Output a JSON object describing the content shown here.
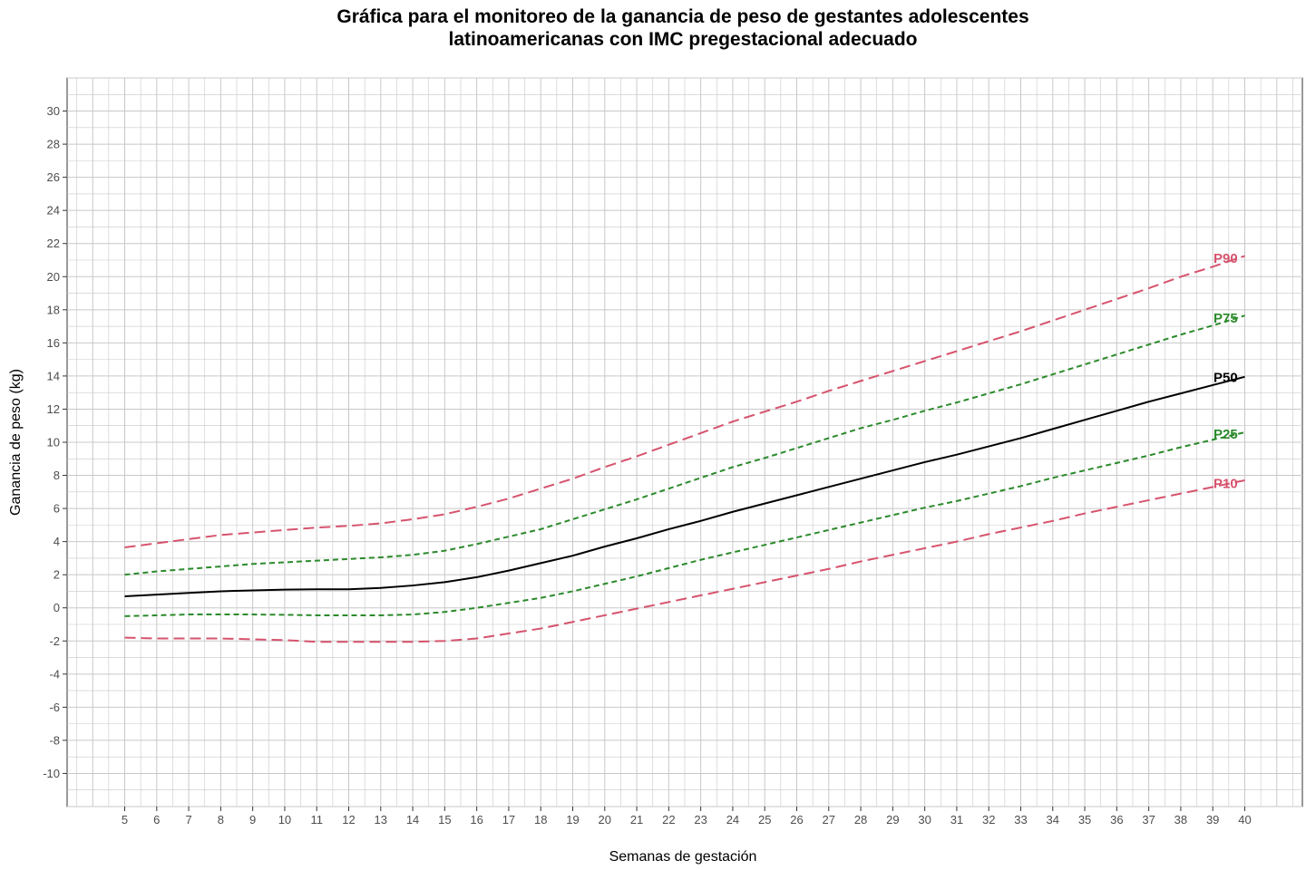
{
  "chart_data": {
    "type": "line",
    "title_lines": [
      "Gráfica para el monitoreo de la ganancia de peso de gestantes adolescentes",
      "latinoamericanas con IMC pregestacional adecuado"
    ],
    "xlabel": "Semanas de gestación",
    "ylabel": "Ganancia de peso (kg)",
    "xlim": [
      3.2,
      41.8
    ],
    "ylim": [
      -12,
      32
    ],
    "x_ticks": [
      5,
      6,
      7,
      8,
      9,
      10,
      11,
      12,
      13,
      14,
      15,
      16,
      17,
      18,
      19,
      20,
      21,
      22,
      23,
      24,
      25,
      26,
      27,
      28,
      29,
      30,
      31,
      32,
      33,
      34,
      35,
      36,
      37,
      38,
      39,
      40
    ],
    "y_ticks": [
      -10,
      -8,
      -6,
      -4,
      -2,
      0,
      2,
      4,
      6,
      8,
      10,
      12,
      14,
      16,
      18,
      20,
      22,
      24,
      26,
      28,
      30
    ],
    "grid": true,
    "minor_grid": true,
    "colors": {
      "p90_p10": "#d6536d",
      "p75_p25": "#2b8a2b",
      "p50": "#000000",
      "grid": "#c8c8c8",
      "tick_text": "#4d4d4d"
    },
    "x": [
      5,
      6,
      7,
      8,
      9,
      10,
      11,
      12,
      13,
      14,
      15,
      16,
      17,
      18,
      19,
      20,
      21,
      22,
      23,
      24,
      25,
      26,
      27,
      28,
      29,
      30,
      31,
      32,
      33,
      34,
      35,
      36,
      37,
      38,
      39,
      40
    ],
    "series": [
      {
        "name": "P90",
        "color": "#d6536d",
        "dash": "long",
        "values": [
          3.65,
          3.9,
          4.15,
          4.4,
          4.55,
          4.7,
          4.85,
          4.95,
          5.1,
          5.35,
          5.65,
          6.1,
          6.6,
          7.2,
          7.8,
          8.5,
          9.15,
          9.85,
          10.55,
          11.25,
          11.85,
          12.45,
          13.1,
          13.7,
          14.3,
          14.9,
          15.5,
          16.1,
          16.7,
          17.35,
          18.0,
          18.65,
          19.3,
          20.0,
          20.6,
          21.25
        ]
      },
      {
        "name": "P75",
        "color": "#2b8a2b",
        "dash": "short",
        "values": [
          2.0,
          2.2,
          2.35,
          2.5,
          2.65,
          2.75,
          2.85,
          2.95,
          3.05,
          3.2,
          3.45,
          3.85,
          4.3,
          4.75,
          5.35,
          5.95,
          6.55,
          7.2,
          7.85,
          8.5,
          9.05,
          9.65,
          10.25,
          10.85,
          11.35,
          11.9,
          12.4,
          12.95,
          13.5,
          14.1,
          14.7,
          15.3,
          15.9,
          16.5,
          17.05,
          17.65
        ]
      },
      {
        "name": "P50",
        "color": "#000000",
        "dash": "solid",
        "values": [
          0.7,
          0.8,
          0.9,
          1.0,
          1.05,
          1.1,
          1.12,
          1.12,
          1.2,
          1.35,
          1.55,
          1.85,
          2.25,
          2.7,
          3.15,
          3.7,
          4.2,
          4.75,
          5.25,
          5.8,
          6.3,
          6.8,
          7.3,
          7.8,
          8.3,
          8.8,
          9.25,
          9.75,
          10.25,
          10.8,
          11.35,
          11.9,
          12.45,
          12.95,
          13.45,
          13.95
        ]
      },
      {
        "name": "P25",
        "color": "#2b8a2b",
        "dash": "short",
        "values": [
          -0.5,
          -0.45,
          -0.4,
          -0.4,
          -0.4,
          -0.42,
          -0.45,
          -0.45,
          -0.45,
          -0.4,
          -0.25,
          0.0,
          0.3,
          0.6,
          1.0,
          1.45,
          1.9,
          2.4,
          2.9,
          3.35,
          3.8,
          4.25,
          4.7,
          5.15,
          5.6,
          6.05,
          6.45,
          6.9,
          7.35,
          7.85,
          8.3,
          8.75,
          9.2,
          9.7,
          10.15,
          10.6
        ]
      },
      {
        "name": "P10",
        "color": "#d6536d",
        "dash": "long",
        "values": [
          -1.8,
          -1.85,
          -1.85,
          -1.85,
          -1.9,
          -1.95,
          -2.05,
          -2.05,
          -2.05,
          -2.05,
          -2.0,
          -1.85,
          -1.55,
          -1.25,
          -0.85,
          -0.45,
          -0.05,
          0.35,
          0.75,
          1.15,
          1.55,
          1.95,
          2.35,
          2.8,
          3.2,
          3.6,
          4.0,
          4.45,
          4.85,
          5.25,
          5.7,
          6.1,
          6.5,
          6.9,
          7.3,
          7.7
        ]
      }
    ],
    "series_labels": [
      {
        "name": "P90",
        "y": 21.1
      },
      {
        "name": "P75",
        "y": 17.5
      },
      {
        "name": "P50",
        "y": 13.9
      },
      {
        "name": "P25",
        "y": 10.5
      },
      {
        "name": "P10",
        "y": 7.5
      }
    ]
  }
}
